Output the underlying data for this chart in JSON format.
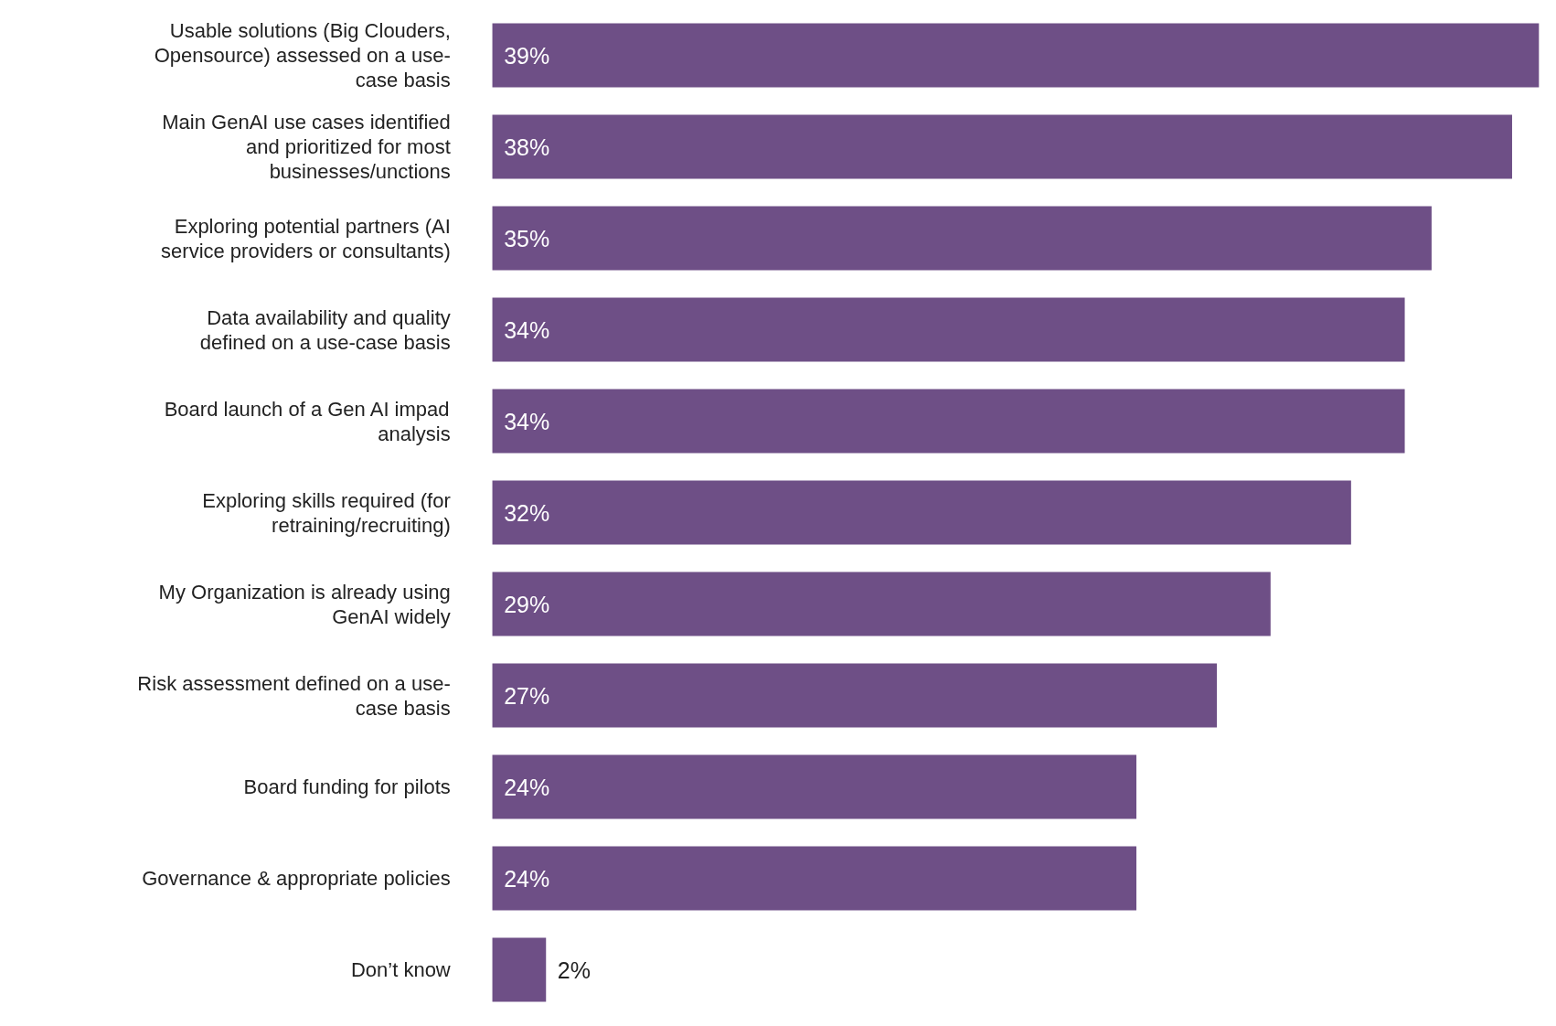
{
  "chart_data": {
    "type": "bar",
    "orientation": "horizontal",
    "categories": [
      "Usable solutions (Big Clouders, Opensource) assessed on a use-case basis",
      "Main GenAI use cases identified and prioritized for most businesses/unctions",
      "Exploring potential partners (AI service providers or consultants)",
      "Data availability and quality defined on a use-case basis",
      "Board launch of a Gen AI impad analysis",
      "Exploring skills required (for retraining/recruiting)",
      "My Organization is already using GenAI widely",
      "Risk assessment defined on a use-case basis",
      "Board funding for pilots",
      "Governance & appropriate policies",
      "Don’t know"
    ],
    "values": [
      39,
      38,
      35,
      34,
      34,
      32,
      29,
      27,
      24,
      24,
      2
    ],
    "value_labels": [
      "39%",
      "38%",
      "35%",
      "34%",
      "34%",
      "32%",
      "29%",
      "27%",
      "24%",
      "24%",
      "2%"
    ],
    "color": "#6e4f86"
  }
}
